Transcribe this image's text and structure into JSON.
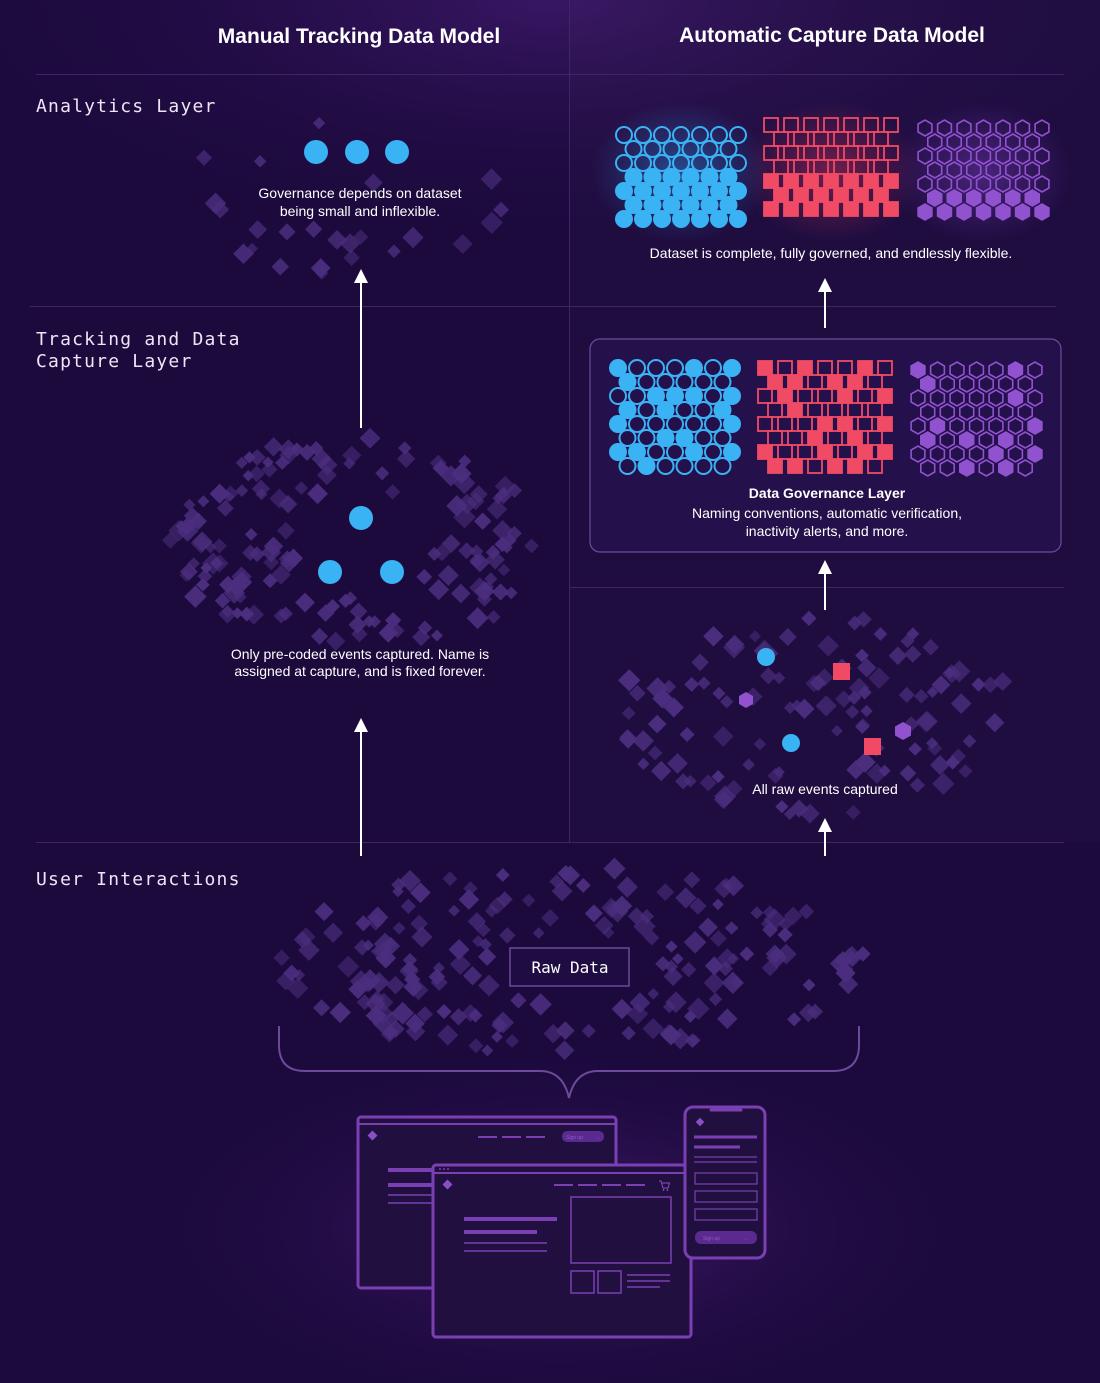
{
  "columns": {
    "manual": "Manual Tracking Data Model",
    "automatic": "Automatic Capture Data Model"
  },
  "layers": {
    "analytics": "Analytics Layer",
    "tracking_line1": "Tracking and Data",
    "tracking_line2": "Capture Layer",
    "user": "User Interactions"
  },
  "captions": {
    "governance_l1": "Governance depends on dataset",
    "governance_l2": "being small and inflexible.",
    "precoded_l1": "Only pre-coded events captured. Name is",
    "precoded_l2": "assigned at capture, and is fixed forever.",
    "complete": "Dataset is complete, fully governed, and endlessly flexible.",
    "gov_title": "Data Governance Layer",
    "gov_l1": "Naming conventions, automatic verification,",
    "gov_l2": "inactivity alerts, and more.",
    "raw_events": "All raw events captured",
    "raw_data": "Raw Data"
  },
  "devices": {
    "desktop_signup": "Sign up",
    "mobile_signup": "Sign up",
    "cart_icon": "cart-icon",
    "arrow_icon": "arrow-right-icon"
  },
  "colors": {
    "background": "#1c0a3d",
    "blue": "#3ab3f5",
    "red": "#f04a64",
    "purple": "#9152cf",
    "diamond": "#4b2e7e",
    "device_stroke": "#7a3fb3"
  }
}
